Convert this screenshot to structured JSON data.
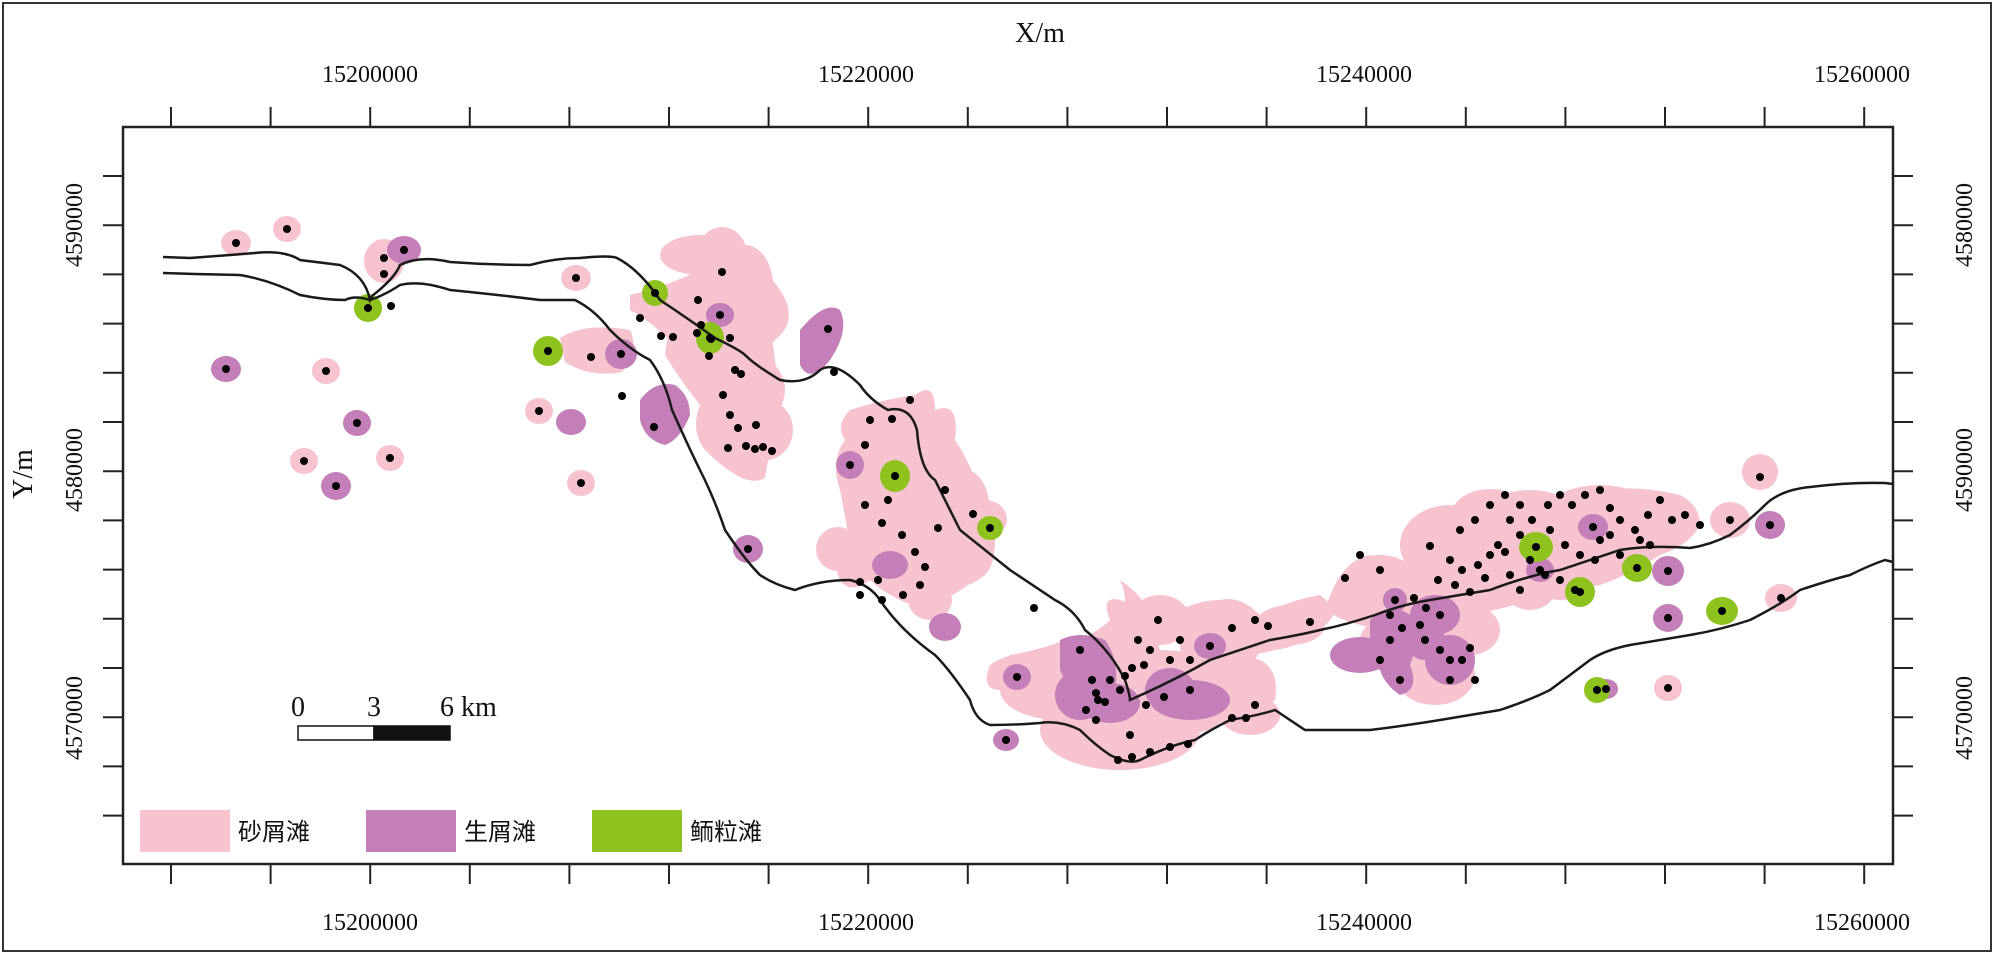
{
  "axes": {
    "x_title": "X/m",
    "y_title": "Y/m",
    "x_ticks": [
      "15200000",
      "15220000",
      "15240000",
      "15260000"
    ],
    "y_ticks_left": [
      "4590000",
      "4580000",
      "4570000"
    ],
    "y_ticks_right": [
      "4580000",
      "4590000",
      "4570000"
    ]
  },
  "scale_bar": {
    "labels": [
      "0",
      "3",
      "6 km"
    ]
  },
  "legend": [
    {
      "name": "砂屑滩",
      "color": "#f6c3cf"
    },
    {
      "name": "生屑滩",
      "color": "#c57fb8"
    },
    {
      "name": "鲕粒滩",
      "color": "#8ec31f"
    }
  ],
  "colors": {
    "frame": "#222222",
    "point": "#000000",
    "fault": "#1a1a1a"
  }
}
